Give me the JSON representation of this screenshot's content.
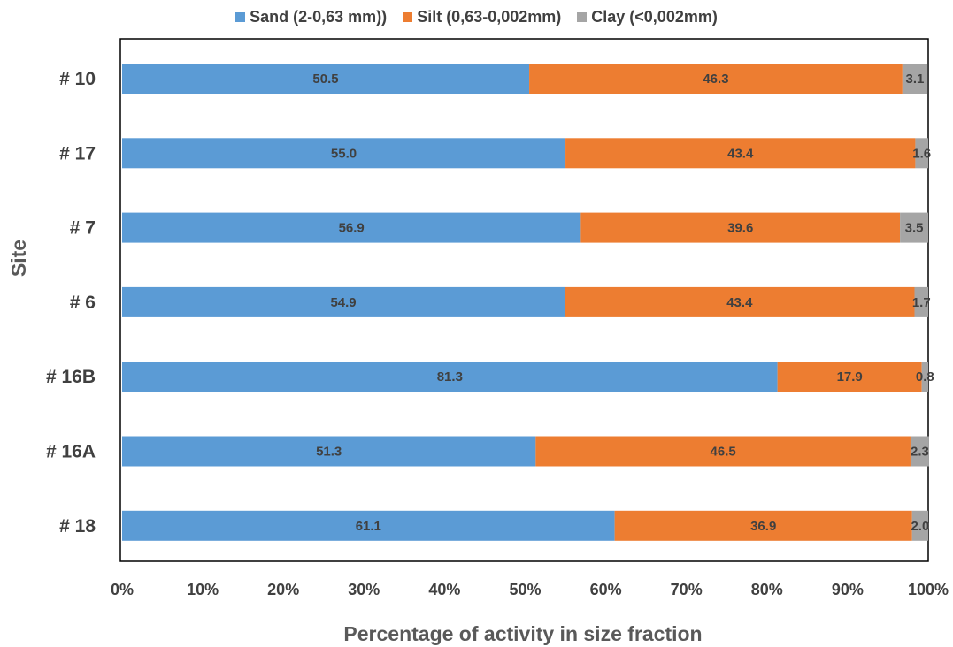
{
  "chart_data": {
    "type": "bar",
    "orientation": "horizontal",
    "stacked": "percent",
    "categories": [
      "# 10",
      "# 17",
      "# 7",
      "# 6",
      "# 16B",
      "# 16A",
      "# 18"
    ],
    "series": [
      {
        "name": "Sand (2-0,63 mm))",
        "color": "#5B9BD5",
        "values": [
          50.5,
          55.0,
          56.9,
          54.9,
          81.3,
          51.3,
          61.1
        ],
        "labels": [
          "50.5",
          "55.0",
          "56.9",
          "54.9",
          "81.3",
          "51.3",
          "61.1"
        ]
      },
      {
        "name": "Silt (0,63-0,002mm)",
        "color": "#ED7D31",
        "values": [
          46.3,
          43.4,
          39.6,
          43.4,
          17.9,
          46.5,
          36.9
        ],
        "labels": [
          "46.3",
          "43.4",
          "39.6",
          "43.4",
          "17.9",
          "46.5",
          "36.9"
        ]
      },
      {
        "name": "Clay (<0,002mm)",
        "color": "#A5A5A5",
        "values": [
          3.1,
          1.6,
          3.5,
          1.7,
          0.8,
          2.3,
          2.0
        ],
        "labels": [
          "3.1",
          "1.6",
          "3.5",
          "1.7",
          "0.8",
          "2.3",
          "2.0"
        ]
      }
    ],
    "xlabel": "Percentage  of activity in size fraction",
    "ylabel": "Site",
    "xlim": [
      0,
      100
    ],
    "xticks": [
      "0%",
      "10%",
      "20%",
      "30%",
      "40%",
      "50%",
      "60%",
      "70%",
      "80%",
      "90%",
      "100%"
    ],
    "grid": false,
    "legend_position": "top"
  }
}
